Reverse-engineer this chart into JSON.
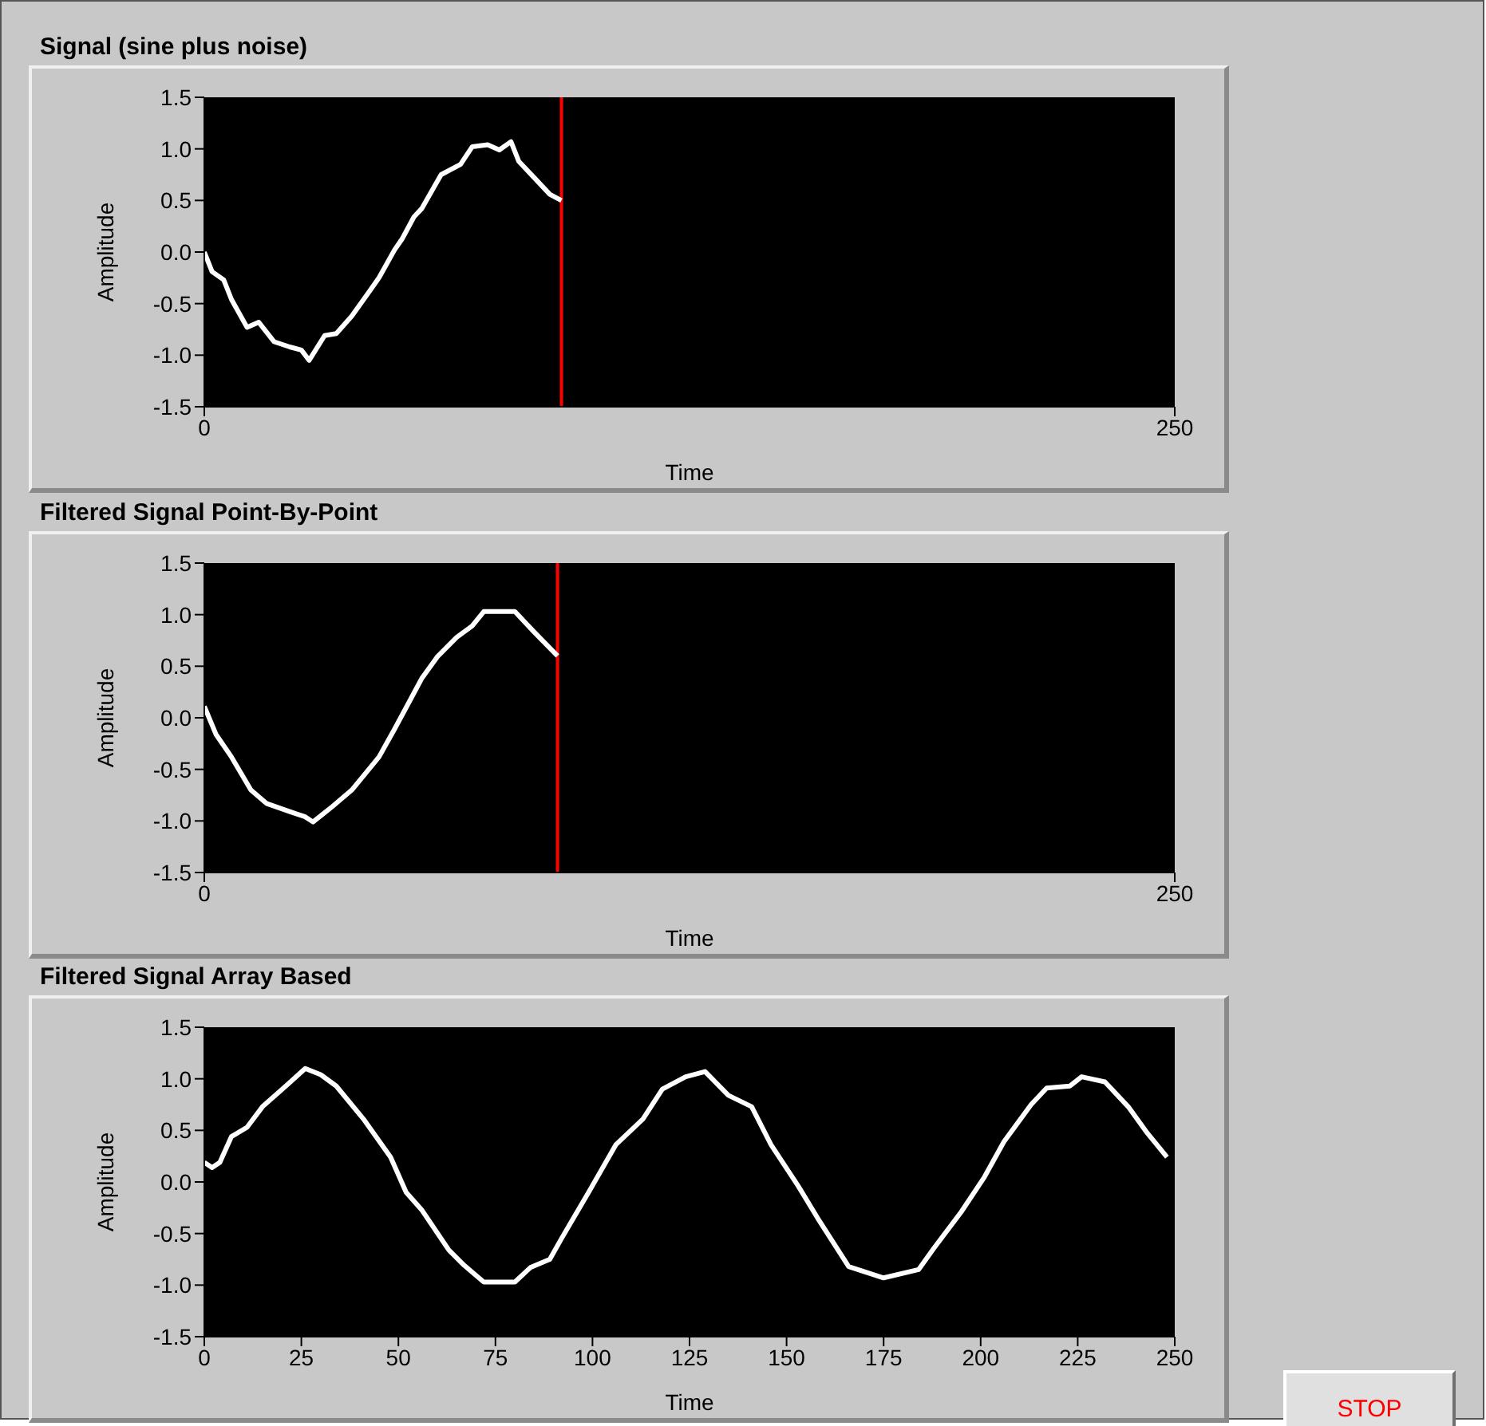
{
  "chart_data": [
    {
      "type": "line",
      "title": "Signal (sine plus noise)",
      "xlabel": "Time",
      "ylabel": "Amplitude",
      "color": "#ffffff",
      "xlim": [
        0,
        250
      ],
      "ylim": [
        -1.5,
        1.5
      ],
      "xticks": [
        0,
        250
      ],
      "yticks": [
        -1.5,
        {
          "value": -1,
          "label": "-1.0"
        },
        -0.5,
        {
          "value": 0,
          "label": "0.0"
        },
        0.5,
        {
          "value": 1,
          "label": "1.0"
        },
        1.5
      ],
      "x": [
        0,
        2,
        5,
        7,
        11,
        14,
        18,
        22,
        25,
        27,
        31,
        34,
        38,
        42,
        45,
        49,
        51,
        54,
        56,
        61,
        66,
        69,
        73,
        76,
        79,
        81,
        85,
        89,
        92
      ],
      "values": [
        0.0,
        -0.19,
        -0.27,
        -0.46,
        -0.73,
        -0.68,
        -0.87,
        -0.92,
        -0.95,
        -1.05,
        -0.81,
        -0.79,
        -0.62,
        -0.41,
        -0.25,
        0.02,
        0.13,
        0.34,
        0.42,
        0.75,
        0.85,
        1.02,
        1.04,
        0.99,
        1.07,
        0.88,
        0.72,
        0.56,
        0.5
      ],
      "ref_lines": [
        {
          "axis": "x",
          "value": 92,
          "color": "#ff0000"
        }
      ]
    },
    {
      "type": "line",
      "title": "Filtered Signal Point-By-Point",
      "xlabel": "Time",
      "ylabel": "Amplitude",
      "color": "#ffffff",
      "xlim": [
        0,
        250
      ],
      "ylim": [
        -1.5,
        1.5
      ],
      "xticks": [
        0,
        250
      ],
      "yticks": [
        -1.5,
        {
          "value": -1,
          "label": "-1.0"
        },
        -0.5,
        {
          "value": 0,
          "label": "0.0"
        },
        0.5,
        {
          "value": 1,
          "label": "1.0"
        },
        1.5
      ],
      "x": [
        0,
        3,
        7,
        12,
        16,
        22,
        26,
        28,
        33,
        38,
        45,
        49,
        54,
        56,
        60,
        65,
        69,
        72,
        80,
        85,
        91
      ],
      "values": [
        0.11,
        -0.16,
        -0.38,
        -0.7,
        -0.83,
        -0.91,
        -0.96,
        -1.01,
        -0.86,
        -0.7,
        -0.38,
        -0.11,
        0.24,
        0.38,
        0.59,
        0.78,
        0.89,
        1.03,
        1.03,
        0.83,
        0.6
      ],
      "ref_lines": [
        {
          "axis": "x",
          "value": 91,
          "color": "#ff0000"
        }
      ]
    },
    {
      "type": "line",
      "title": "Filtered Signal Array Based",
      "xlabel": "Time",
      "ylabel": "Amplitude",
      "color": "#ffffff",
      "xlim": [
        0,
        250
      ],
      "ylim": [
        -1.5,
        1.5
      ],
      "xticks": [
        0,
        25,
        50,
        75,
        100,
        125,
        150,
        175,
        200,
        225,
        250
      ],
      "yticks": [
        -1.5,
        {
          "value": -1,
          "label": "-1.0"
        },
        -0.5,
        {
          "value": 0,
          "label": "0.0"
        },
        0.5,
        {
          "value": 1,
          "label": "1.0"
        },
        1.5
      ],
      "x": [
        0,
        2,
        4,
        7,
        11,
        15,
        21,
        26,
        30,
        34,
        41,
        48,
        52,
        56,
        63,
        67,
        72,
        80,
        84,
        89,
        92,
        99,
        106,
        113,
        118,
        124,
        129,
        135,
        141,
        146,
        153,
        158,
        166,
        175,
        184,
        188,
        195,
        201,
        206,
        213,
        217,
        223,
        226,
        232,
        238,
        243,
        248
      ],
      "values": [
        0.19,
        0.14,
        0.19,
        0.44,
        0.53,
        0.73,
        0.93,
        1.1,
        1.04,
        0.93,
        0.61,
        0.24,
        -0.1,
        -0.27,
        -0.66,
        -0.81,
        -0.97,
        -0.97,
        -0.83,
        -0.75,
        -0.55,
        -0.1,
        0.36,
        0.61,
        0.9,
        1.02,
        1.07,
        0.84,
        0.73,
        0.36,
        -0.04,
        -0.35,
        -0.82,
        -0.93,
        -0.85,
        -0.64,
        -0.29,
        0.05,
        0.39,
        0.75,
        0.91,
        0.93,
        1.02,
        0.97,
        0.73,
        0.47,
        0.24
      ],
      "annotations": [
        "STOP"
      ]
    }
  ]
}
